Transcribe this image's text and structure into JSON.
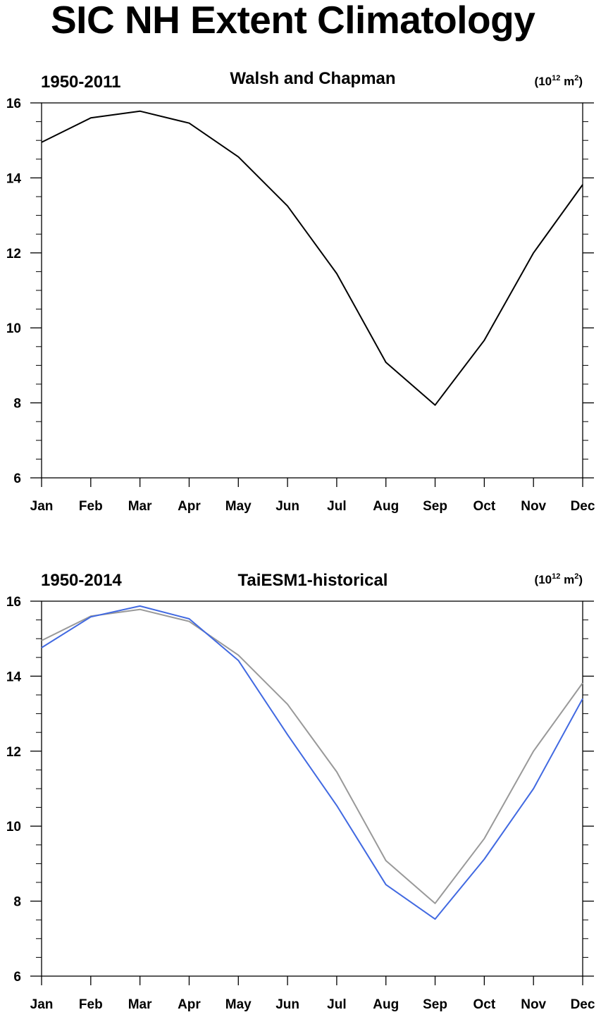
{
  "page_title": "SIC NH Extent Climatology",
  "chart_data": [
    {
      "type": "line",
      "left_title": "1950-2011",
      "title": "Walsh and Chapman",
      "units": "(10^12 m^2)",
      "units_base": "(10",
      "units_exp": "12",
      "units_mid": " m",
      "units_exp2": "2",
      "units_close": ")",
      "categories": [
        "Jan",
        "Feb",
        "Mar",
        "Apr",
        "May",
        "Jun",
        "Jul",
        "Aug",
        "Sep",
        "Oct",
        "Nov",
        "Dec"
      ],
      "yticks": [
        "6",
        "8",
        "10",
        "12",
        "14",
        "16"
      ],
      "ylim": [
        6,
        16
      ],
      "grid": false,
      "series": [
        {
          "color": "#000000",
          "values": [
            14.95,
            15.6,
            15.78,
            15.46,
            14.56,
            13.25,
            11.45,
            9.08,
            7.94,
            9.67,
            12.0,
            13.82
          ]
        }
      ]
    },
    {
      "type": "line",
      "left_title": "1950-2014",
      "title": "TaiESM1-historical",
      "units": "(10^12 m^2)",
      "units_base": "(10",
      "units_exp": "12",
      "units_mid": " m",
      "units_exp2": "2",
      "units_close": ")",
      "categories": [
        "Jan",
        "Feb",
        "Mar",
        "Apr",
        "May",
        "Jun",
        "Jul",
        "Aug",
        "Sep",
        "Oct",
        "Nov",
        "Dec"
      ],
      "yticks": [
        "6",
        "8",
        "10",
        "12",
        "14",
        "16"
      ],
      "ylim": [
        6,
        16
      ],
      "grid": false,
      "series": [
        {
          "color": "#999999",
          "values": [
            14.95,
            15.6,
            15.78,
            15.46,
            14.56,
            13.25,
            11.45,
            9.08,
            7.94,
            9.67,
            12.0,
            13.82
          ]
        },
        {
          "color": "#4169e1",
          "values": [
            14.76,
            15.58,
            15.87,
            15.53,
            14.42,
            12.44,
            10.55,
            8.44,
            7.52,
            9.12,
            11.0,
            13.4
          ]
        }
      ]
    }
  ]
}
